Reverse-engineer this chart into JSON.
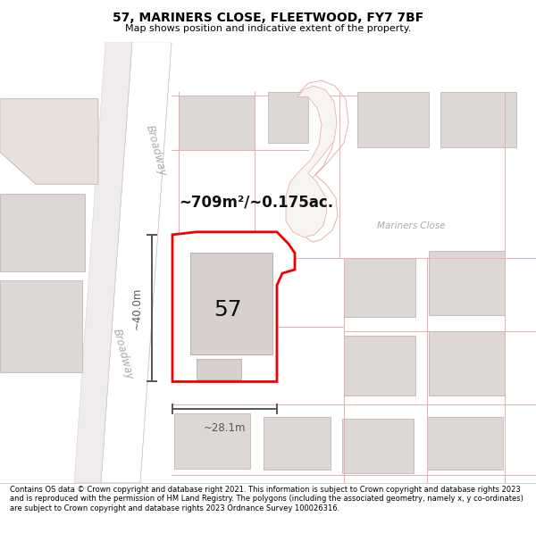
{
  "title": "57, MARINERS CLOSE, FLEETWOOD, FY7 7BF",
  "subtitle": "Map shows position and indicative extent of the property.",
  "footer": "Contains OS data © Crown copyright and database right 2021. This information is subject to Crown copyright and database rights 2023 and is reproduced with the permission of HM Land Registry. The polygons (including the associated geometry, namely x, y co-ordinates) are subject to Crown copyright and database rights 2023 Ordnance Survey 100026316.",
  "area_text": "~709m²/~0.175ac.",
  "number_text": "57",
  "width_label": "~28.1m",
  "height_label": "~40.0m",
  "street_broadway": "Broadway",
  "street_mariners": "Mariners Close",
  "bg_color": "#f7f4f2",
  "road_color": "#ffffff",
  "building_fill": "#ddd8d5",
  "building_stroke": "#c0b8b5",
  "plot_stroke": "#ee0000",
  "plot_fill": "#ffffff",
  "dim_color": "#555555",
  "street_text_color": "#b0a8a5",
  "title_fontsize": 10,
  "subtitle_fontsize": 8,
  "footer_fontsize": 6.0
}
